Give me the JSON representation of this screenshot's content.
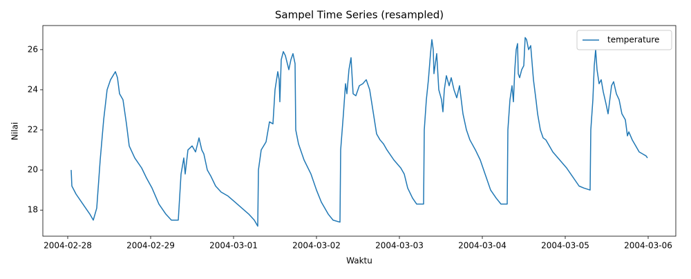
{
  "chart_data": {
    "type": "line",
    "title": "Sampel Time Series (resampled)",
    "x_label": "Waktu",
    "y_label": "Nilai",
    "legend": "upper right",
    "grid": false,
    "xlim": [
      "2004-02-27 16:48",
      "2004-03-06 08:00"
    ],
    "xticks": [
      "2004-02-28",
      "2004-02-29",
      "2004-03-01",
      "2004-03-02",
      "2004-03-03",
      "2004-03-04",
      "2004-03-05",
      "2004-03-06"
    ],
    "ylim": [
      16.7,
      27.2
    ],
    "yticks": [
      18,
      20,
      22,
      24,
      26
    ],
    "x": [
      "2004-02-28 01:00",
      "2004-02-28 01:12",
      "2004-02-28 02:24",
      "2004-02-28 04:24",
      "2004-02-28 06:24",
      "2004-02-28 07:24",
      "2004-02-28 08:24",
      "2004-02-28 09:24",
      "2004-02-28 10:24",
      "2004-02-28 11:24",
      "2004-02-28 12:24",
      "2004-02-28 13:48",
      "2004-02-28 14:24",
      "2004-02-28 15:00",
      "2004-02-28 16:00",
      "2004-02-28 17:00",
      "2004-02-28 17:48",
      "2004-02-28 19:24",
      "2004-02-28 21:24",
      "2004-02-28 22:48",
      "2004-02-29 00:24",
      "2004-02-29 02:24",
      "2004-02-29 04:24",
      "2004-02-29 06:00",
      "2004-02-29 08:00",
      "2004-02-29 08:48",
      "2004-02-29 09:36",
      "2004-02-29 10:00",
      "2004-02-29 10:48",
      "2004-02-29 12:00",
      "2004-02-29 13:00",
      "2004-02-29 14:00",
      "2004-02-29 14:48",
      "2004-02-29 15:24",
      "2004-02-29 16:24",
      "2004-02-29 17:24",
      "2004-02-29 18:48",
      "2004-02-29 20:24",
      "2004-02-29 22:24",
      "2004-03-01 00:24",
      "2004-03-01 02:24",
      "2004-03-01 04:24",
      "2004-03-01 06:00",
      "2004-03-01 07:00",
      "2004-03-01 07:12",
      "2004-03-01 08:00",
      "2004-03-01 09:24",
      "2004-03-01 10:24",
      "2004-03-01 11:24",
      "2004-03-01 12:00",
      "2004-03-01 12:48",
      "2004-03-01 13:12",
      "2004-03-01 13:24",
      "2004-03-01 13:48",
      "2004-03-01 14:24",
      "2004-03-01 15:00",
      "2004-03-01 16:00",
      "2004-03-01 16:36",
      "2004-03-01 17:12",
      "2004-03-01 17:48",
      "2004-03-01 18:00",
      "2004-03-01 18:48",
      "2004-03-01 20:24",
      "2004-03-01 22:24",
      "2004-03-02 00:00",
      "2004-03-02 01:24",
      "2004-03-02 03:24",
      "2004-03-02 04:48",
      "2004-03-02 06:48",
      "2004-03-02 07:00",
      "2004-03-02 07:48",
      "2004-03-02 08:24",
      "2004-03-02 08:48",
      "2004-03-02 09:24",
      "2004-03-02 10:00",
      "2004-03-02 10:36",
      "2004-03-02 11:24",
      "2004-03-02 12:24",
      "2004-03-02 13:24",
      "2004-03-02 14:24",
      "2004-03-02 15:24",
      "2004-03-02 16:24",
      "2004-03-02 17:24",
      "2004-03-02 18:24",
      "2004-03-02 19:24",
      "2004-03-02 20:24",
      "2004-03-02 22:24",
      "2004-03-03 00:24",
      "2004-03-03 01:24",
      "2004-03-03 02:24",
      "2004-03-03 03:48",
      "2004-03-03 05:00",
      "2004-03-03 07:00",
      "2004-03-03 07:12",
      "2004-03-03 07:48",
      "2004-03-03 08:24",
      "2004-03-03 09:00",
      "2004-03-03 09:24",
      "2004-03-03 09:48",
      "2004-03-03 10:00",
      "2004-03-03 10:48",
      "2004-03-03 11:24",
      "2004-03-03 12:12",
      "2004-03-03 12:36",
      "2004-03-03 13:00",
      "2004-03-03 13:36",
      "2004-03-03 14:24",
      "2004-03-03 15:00",
      "2004-03-03 15:48",
      "2004-03-03 16:36",
      "2004-03-03 17:24",
      "2004-03-03 18:24",
      "2004-03-03 19:24",
      "2004-03-03 20:24",
      "2004-03-03 22:00",
      "2004-03-03 23:24",
      "2004-03-04 00:48",
      "2004-03-04 02:24",
      "2004-03-04 04:00",
      "2004-03-04 05:24",
      "2004-03-04 07:12",
      "2004-03-04 07:24",
      "2004-03-04 08:00",
      "2004-03-04 08:36",
      "2004-03-04 09:00",
      "2004-03-04 09:24",
      "2004-03-04 09:48",
      "2004-03-04 10:12",
      "2004-03-04 10:24",
      "2004-03-04 10:48",
      "2004-03-04 11:24",
      "2004-03-04 12:00",
      "2004-03-04 12:24",
      "2004-03-04 12:48",
      "2004-03-04 13:24",
      "2004-03-04 14:00",
      "2004-03-04 14:48",
      "2004-03-04 15:36",
      "2004-03-04 16:00",
      "2004-03-04 16:48",
      "2004-03-04 17:36",
      "2004-03-04 18:24",
      "2004-03-04 19:24",
      "2004-03-04 20:24",
      "2004-03-04 22:24",
      "2004-03-05 00:24",
      "2004-03-05 02:24",
      "2004-03-05 04:00",
      "2004-03-05 05:24",
      "2004-03-05 07:12",
      "2004-03-05 07:24",
      "2004-03-05 08:00",
      "2004-03-05 08:24",
      "2004-03-05 08:48",
      "2004-03-05 09:12",
      "2004-03-05 09:48",
      "2004-03-05 10:24",
      "2004-03-05 11:00",
      "2004-03-05 11:48",
      "2004-03-05 12:24",
      "2004-03-05 13:24",
      "2004-03-05 14:00",
      "2004-03-05 14:48",
      "2004-03-05 15:36",
      "2004-03-05 16:24",
      "2004-03-05 17:24",
      "2004-03-05 18:00",
      "2004-03-05 18:24",
      "2004-03-05 19:24",
      "2004-03-05 20:24",
      "2004-03-05 21:24",
      "2004-03-05 22:24",
      "2004-03-05 23:24",
      "2004-03-05 23:48"
    ],
    "series": [
      {
        "name": "temperature",
        "color": "#1f77b4",
        "values": [
          20.0,
          19.2,
          18.8,
          18.3,
          17.8,
          17.5,
          18.1,
          20.5,
          22.5,
          24.0,
          24.5,
          24.9,
          24.6,
          23.8,
          23.5,
          22.3,
          21.2,
          20.6,
          20.1,
          19.6,
          19.1,
          18.3,
          17.8,
          17.5,
          17.5,
          19.8,
          20.6,
          19.8,
          21.0,
          21.2,
          20.9,
          21.6,
          21.0,
          20.8,
          20.0,
          19.7,
          19.2,
          18.9,
          18.7,
          18.4,
          18.1,
          17.8,
          17.5,
          17.2,
          20.0,
          21.0,
          21.4,
          22.4,
          22.3,
          24.0,
          24.9,
          24.5,
          23.4,
          25.5,
          25.9,
          25.7,
          25.0,
          25.5,
          25.8,
          25.3,
          22.0,
          21.3,
          20.5,
          19.8,
          19.0,
          18.4,
          17.8,
          17.5,
          17.4,
          21.0,
          22.8,
          24.3,
          23.8,
          25.0,
          25.6,
          23.8,
          23.7,
          24.2,
          24.3,
          24.5,
          24.0,
          22.9,
          21.8,
          21.5,
          21.3,
          21.0,
          20.5,
          20.1,
          19.8,
          19.1,
          18.6,
          18.3,
          18.3,
          22.0,
          23.5,
          24.5,
          25.8,
          26.5,
          26.0,
          24.8,
          25.8,
          24.0,
          23.5,
          22.9,
          24.0,
          24.7,
          24.2,
          24.6,
          24.0,
          23.6,
          24.2,
          22.8,
          22.0,
          21.5,
          21.0,
          20.5,
          19.8,
          19.0,
          18.6,
          18.3,
          18.3,
          22.0,
          23.5,
          24.2,
          23.4,
          25.0,
          26.0,
          26.3,
          24.8,
          24.6,
          25.0,
          25.2,
          26.6,
          26.5,
          26.0,
          26.2,
          24.5,
          23.4,
          22.8,
          22.0,
          21.6,
          21.5,
          21.2,
          20.9,
          20.5,
          20.1,
          19.6,
          19.2,
          19.1,
          19.0,
          22.0,
          23.5,
          25.2,
          26.0,
          25.0,
          24.3,
          24.5,
          23.9,
          23.3,
          22.8,
          24.2,
          24.4,
          23.8,
          23.5,
          22.8,
          22.5,
          21.7,
          21.9,
          21.5,
          21.2,
          20.9,
          20.8,
          20.7,
          20.6
        ]
      }
    ]
  }
}
